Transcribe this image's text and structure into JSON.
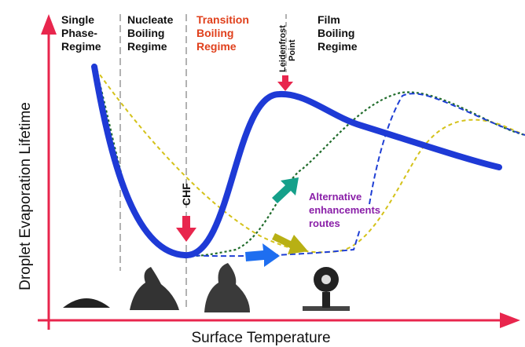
{
  "regimes": [
    {
      "lines": [
        "Single",
        "Phase-",
        "Regime"
      ]
    },
    {
      "lines": [
        "Nucleate",
        "Boiling",
        "Regime"
      ]
    },
    {
      "lines": [
        "Transition",
        "Boiling",
        "Regime"
      ]
    },
    {
      "lines": [
        "Film",
        "Boiling",
        "Regime"
      ]
    }
  ],
  "leidenfrost": {
    "lines": [
      "Leidenfrost",
      "Point"
    ]
  },
  "chf": "CHF",
  "alternative": {
    "lines": [
      "Alternative",
      "enhancements",
      "routes"
    ]
  },
  "axes": {
    "y_label": "Droplet  Evaporation  Lifetime",
    "x_label": "Surface Temperature"
  }
}
